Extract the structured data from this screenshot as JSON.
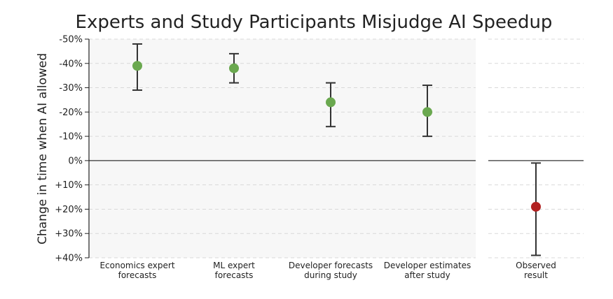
{
  "chart_data": {
    "type": "errorbar",
    "title": "Experts and Study Participants Misjudge AI Speedup",
    "ylabel": "Change in time when AI allowed",
    "ylim": [
      -50,
      40
    ],
    "y_inverted": true,
    "yticks": [
      -50,
      -40,
      -30,
      -20,
      -10,
      0,
      10,
      20,
      30,
      40
    ],
    "ytick_labels": [
      "-50%",
      "-40%",
      "-30%",
      "-20%",
      "-10%",
      "0%",
      "+10%",
      "+20%",
      "+30%",
      "+40%"
    ],
    "grid": "horizontal dashed",
    "panels": [
      {
        "background": "#f7f7f7",
        "categories": [
          [
            "Economics expert",
            "forecasts"
          ],
          [
            "ML expert",
            "forecasts"
          ],
          [
            "Developer forecasts",
            "during study"
          ],
          [
            "Developer estimates",
            "after study"
          ]
        ],
        "values": [
          -39,
          -38,
          -24,
          -20
        ],
        "err_low": [
          -48,
          -44,
          -32,
          -31
        ],
        "err_high": [
          -29,
          -32,
          -14,
          -10
        ],
        "point_color": "#6aa84f"
      },
      {
        "background": "#ffffff",
        "categories": [
          [
            "Observed",
            "result"
          ]
        ],
        "values": [
          19
        ],
        "err_low": [
          1
        ],
        "err_high": [
          39
        ],
        "point_color": "#b22222"
      }
    ]
  }
}
